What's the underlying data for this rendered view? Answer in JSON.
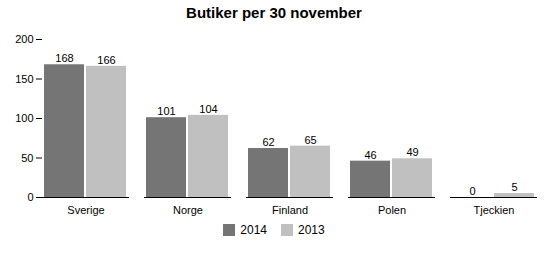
{
  "chart_data": {
    "type": "bar",
    "title": "Butiker per 30 november",
    "categories": [
      "Sverige",
      "Norge",
      "Finland",
      "Polen",
      "Tjeckien"
    ],
    "series": [
      {
        "name": "2014",
        "color": "#757575",
        "values": [
          168,
          101,
          62,
          46,
          0
        ]
      },
      {
        "name": "2013",
        "color": "#c0c0c0",
        "values": [
          166,
          104,
          65,
          49,
          5
        ]
      }
    ],
    "ylim": [
      0,
      200
    ],
    "yticks": [
      0,
      50,
      100,
      150,
      200
    ],
    "grid": false,
    "legend": "bottom",
    "data_labels": true
  }
}
